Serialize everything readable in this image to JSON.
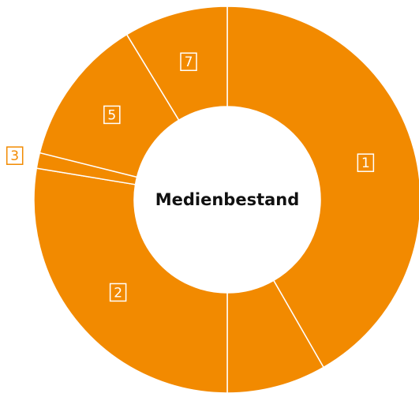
{
  "chart_data": {
    "type": "donut",
    "title": "Medienbestand",
    "categories": [
      "1",
      null,
      "2",
      "3",
      "5",
      "7"
    ],
    "values": [
      41.7,
      8.3,
      27.6,
      1.3,
      12.4,
      8.7
    ],
    "color": "#f28a00"
  }
}
